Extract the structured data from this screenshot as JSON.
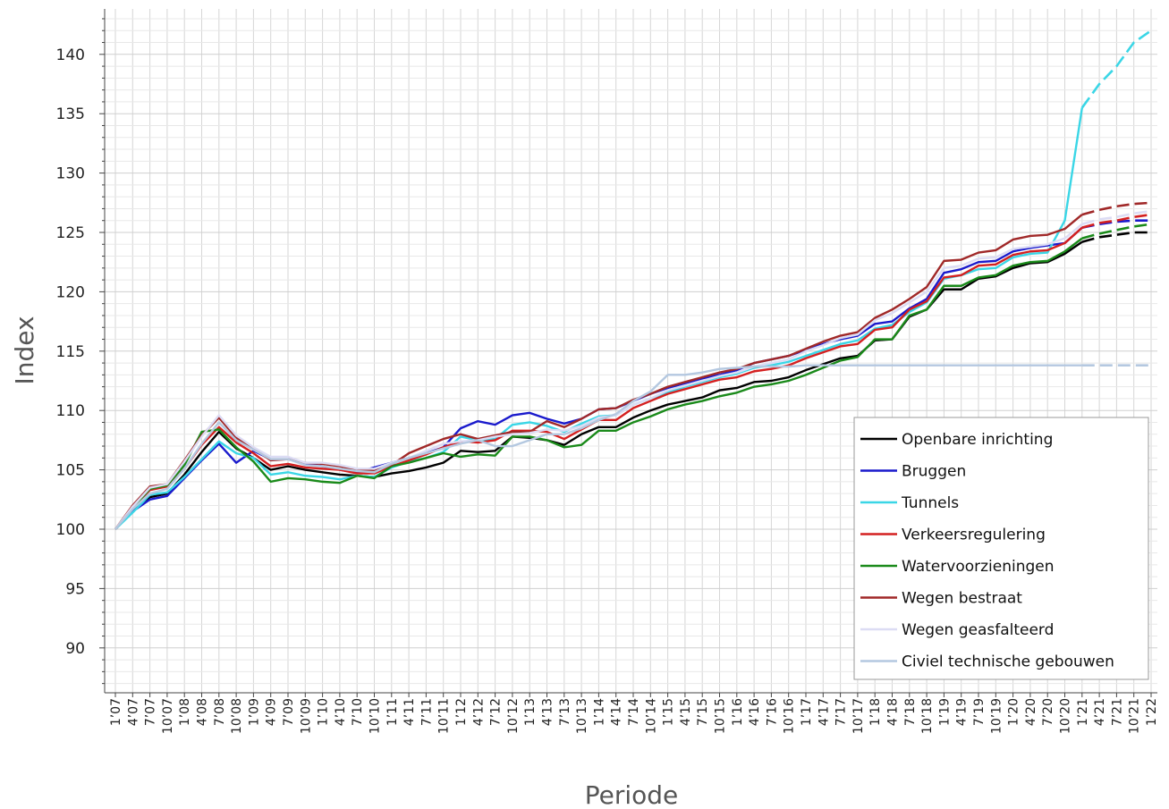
{
  "chart_data": {
    "type": "line",
    "xlabel": "Periode",
    "ylabel": "Index",
    "ylim": [
      86,
      145
    ],
    "yticks": [
      90,
      95,
      100,
      105,
      110,
      115,
      120,
      125,
      130,
      135,
      140
    ],
    "grid": true,
    "legend_position": "bottom-right",
    "categories": [
      "1’07",
      "4’07",
      "7’07",
      "10’07",
      "1’08",
      "4’08",
      "7’08",
      "10’08",
      "1’09",
      "4’09",
      "7’09",
      "10’09",
      "1’10",
      "4’10",
      "7’10",
      "10’10",
      "1’11",
      "4’11",
      "7’11",
      "10’11",
      "1’12",
      "4’12",
      "7’12",
      "10’12",
      "1’13",
      "4’13",
      "7’13",
      "10’13",
      "1’14",
      "4’14",
      "7’14",
      "10’14",
      "1’15",
      "4’15",
      "7’15",
      "10’15",
      "1’16",
      "4’16",
      "7’16",
      "10’16",
      "1’17",
      "4’17",
      "7’17",
      "10’17",
      "1’18",
      "4’18",
      "7’18",
      "10’18",
      "1’19",
      "4’19",
      "7’19",
      "10’19",
      "1’20",
      "4’20",
      "7’20",
      "10’20",
      "1’21",
      "4’21",
      "7’21",
      "10’21",
      "1’22"
    ],
    "forecast_from_index": 56,
    "series": [
      {
        "name": "Openbare inrichting",
        "color": "#000000",
        "values": [
          100.0,
          101.6,
          102.7,
          103.0,
          104.6,
          106.5,
          108.2,
          106.8,
          106.0,
          105.0,
          105.3,
          105.0,
          104.8,
          104.6,
          104.5,
          104.4,
          104.7,
          104.9,
          105.2,
          105.6,
          106.6,
          106.5,
          106.6,
          107.8,
          107.7,
          107.5,
          107.1,
          108.0,
          108.6,
          108.6,
          109.4,
          110.0,
          110.5,
          110.8,
          111.1,
          111.7,
          111.9,
          112.4,
          112.5,
          112.8,
          113.4,
          113.9,
          114.4,
          114.6,
          115.9,
          116.0,
          117.9,
          118.5,
          120.2,
          120.2,
          121.1,
          121.3,
          122.0,
          122.4,
          122.5,
          123.2,
          124.2,
          124.6,
          124.8,
          125.0,
          125.0
        ]
      },
      {
        "name": "Bruggen",
        "color": "#1a1acc",
        "values": [
          100.0,
          101.5,
          102.5,
          102.8,
          104.3,
          105.8,
          107.2,
          105.6,
          106.6,
          105.9,
          105.9,
          105.5,
          105.3,
          105.0,
          104.8,
          105.2,
          105.6,
          106.0,
          106.4,
          106.9,
          108.5,
          109.1,
          108.8,
          109.6,
          109.8,
          109.3,
          108.9,
          109.3,
          110.1,
          110.2,
          110.8,
          111.4,
          111.9,
          112.3,
          112.7,
          113.0,
          113.4,
          114.0,
          114.3,
          114.6,
          115.1,
          115.6,
          116.0,
          116.3,
          117.3,
          117.5,
          118.6,
          119.4,
          121.6,
          121.9,
          122.5,
          122.6,
          123.4,
          123.7,
          123.9,
          124.1,
          125.4,
          125.7,
          125.9,
          126.0,
          126.0
        ]
      },
      {
        "name": "Tunnels",
        "color": "#3ad6e6",
        "values": [
          100.0,
          101.4,
          102.9,
          103.1,
          104.4,
          105.9,
          107.4,
          106.4,
          106.0,
          104.6,
          104.8,
          104.5,
          104.4,
          104.2,
          104.5,
          104.4,
          105.2,
          105.7,
          106.0,
          106.5,
          107.8,
          107.5,
          107.6,
          108.8,
          109.0,
          108.7,
          108.2,
          108.9,
          109.5,
          109.6,
          110.5,
          111.0,
          111.5,
          112.0,
          112.4,
          112.8,
          113.1,
          113.6,
          113.8,
          114.1,
          114.6,
          115.1,
          115.6,
          115.9,
          116.9,
          117.2,
          118.3,
          119.1,
          121.1,
          121.4,
          121.9,
          122.0,
          122.9,
          123.2,
          123.3,
          126.0,
          135.5,
          137.5,
          139.0,
          141.0,
          142.0
        ]
      },
      {
        "name": "Verkeersregulering",
        "color": "#d42020",
        "values": [
          100.0,
          101.8,
          103.3,
          103.6,
          105.1,
          107.1,
          108.6,
          107.3,
          106.4,
          105.3,
          105.5,
          105.2,
          105.1,
          105.0,
          104.7,
          104.7,
          105.3,
          105.8,
          106.3,
          106.9,
          107.4,
          107.3,
          107.5,
          108.3,
          108.3,
          108.2,
          107.6,
          108.4,
          109.2,
          109.2,
          110.2,
          110.8,
          111.4,
          111.8,
          112.2,
          112.6,
          112.8,
          113.3,
          113.5,
          113.8,
          114.4,
          114.9,
          115.4,
          115.6,
          116.8,
          117.0,
          118.5,
          119.2,
          121.2,
          121.4,
          122.2,
          122.3,
          123.1,
          123.4,
          123.5,
          124.1,
          125.4,
          125.8,
          126.0,
          126.3,
          126.5
        ]
      },
      {
        "name": "Watervoorzieningen",
        "color": "#1a8a1a",
        "values": [
          100.0,
          101.8,
          103.4,
          103.7,
          105.4,
          108.2,
          108.4,
          106.9,
          105.7,
          104.0,
          104.3,
          104.2,
          104.0,
          103.9,
          104.5,
          104.3,
          105.3,
          105.6,
          106.0,
          106.4,
          106.1,
          106.3,
          106.2,
          107.8,
          107.8,
          107.5,
          106.9,
          107.1,
          108.3,
          108.3,
          109.0,
          109.5,
          110.1,
          110.5,
          110.8,
          111.2,
          111.5,
          112.0,
          112.2,
          112.5,
          113.0,
          113.6,
          114.2,
          114.5,
          116.0,
          116.0,
          118.0,
          118.5,
          120.5,
          120.5,
          121.2,
          121.4,
          122.2,
          122.5,
          122.6,
          123.4,
          124.5,
          124.9,
          125.2,
          125.5,
          125.7
        ]
      },
      {
        "name": "Wegen bestraat",
        "color": "#a02828",
        "values": [
          100.0,
          102.0,
          103.6,
          103.8,
          105.8,
          107.9,
          109.4,
          107.7,
          106.8,
          105.8,
          105.9,
          105.6,
          105.5,
          105.3,
          105.0,
          104.9,
          105.4,
          106.4,
          107.0,
          107.6,
          108.0,
          107.6,
          107.9,
          108.2,
          108.2,
          109.1,
          108.6,
          109.3,
          110.1,
          110.2,
          110.9,
          111.4,
          112.0,
          112.4,
          112.8,
          113.2,
          113.5,
          114.0,
          114.3,
          114.6,
          115.2,
          115.8,
          116.3,
          116.6,
          117.8,
          118.5,
          119.4,
          120.4,
          122.6,
          122.7,
          123.3,
          123.5,
          124.4,
          124.7,
          124.8,
          125.3,
          126.5,
          126.9,
          127.2,
          127.4,
          127.5
        ]
      },
      {
        "name": "Wegen geasfalteerd",
        "color": "#dcdcf4",
        "values": [
          100.0,
          101.9,
          103.5,
          103.8,
          105.7,
          107.8,
          109.6,
          107.9,
          106.9,
          106.1,
          106.1,
          105.6,
          105.6,
          105.4,
          105.1,
          105.1,
          105.6,
          106.0,
          106.6,
          107.2,
          107.4,
          107.5,
          107.8,
          108.0,
          108.1,
          108.4,
          108.3,
          108.7,
          109.4,
          109.6,
          110.5,
          111.0,
          111.7,
          112.1,
          112.5,
          112.9,
          113.2,
          113.7,
          114.0,
          114.3,
          115.0,
          115.5,
          116.1,
          116.4,
          117.6,
          118.2,
          119.1,
          120.0,
          122.0,
          122.2,
          122.8,
          122.9,
          123.6,
          123.8,
          124.0,
          124.5,
          125.7,
          126.1,
          126.3,
          126.6,
          126.8
        ]
      },
      {
        "name": "Civiel technische gebouwen",
        "color": "#b4c8e0",
        "values": [
          100.0,
          101.7,
          103.0,
          103.4,
          105.1,
          107.2,
          109.0,
          107.5,
          106.7,
          105.9,
          105.9,
          105.4,
          105.3,
          105.1,
          104.9,
          104.8,
          105.5,
          106.0,
          106.4,
          106.8,
          107.2,
          107.5,
          107.0,
          107.0,
          107.5,
          108.0,
          108.0,
          108.5,
          109.2,
          109.7,
          110.8,
          111.6,
          113.0,
          113.0,
          113.2,
          113.5,
          113.6,
          113.7,
          113.7,
          113.7,
          113.8,
          113.8,
          113.8,
          113.8,
          113.8,
          113.8,
          113.8,
          113.8,
          113.8,
          113.8,
          113.8,
          113.8,
          113.8,
          113.8,
          113.8,
          113.8,
          113.8,
          113.8,
          113.8,
          113.8,
          113.8
        ]
      }
    ]
  }
}
